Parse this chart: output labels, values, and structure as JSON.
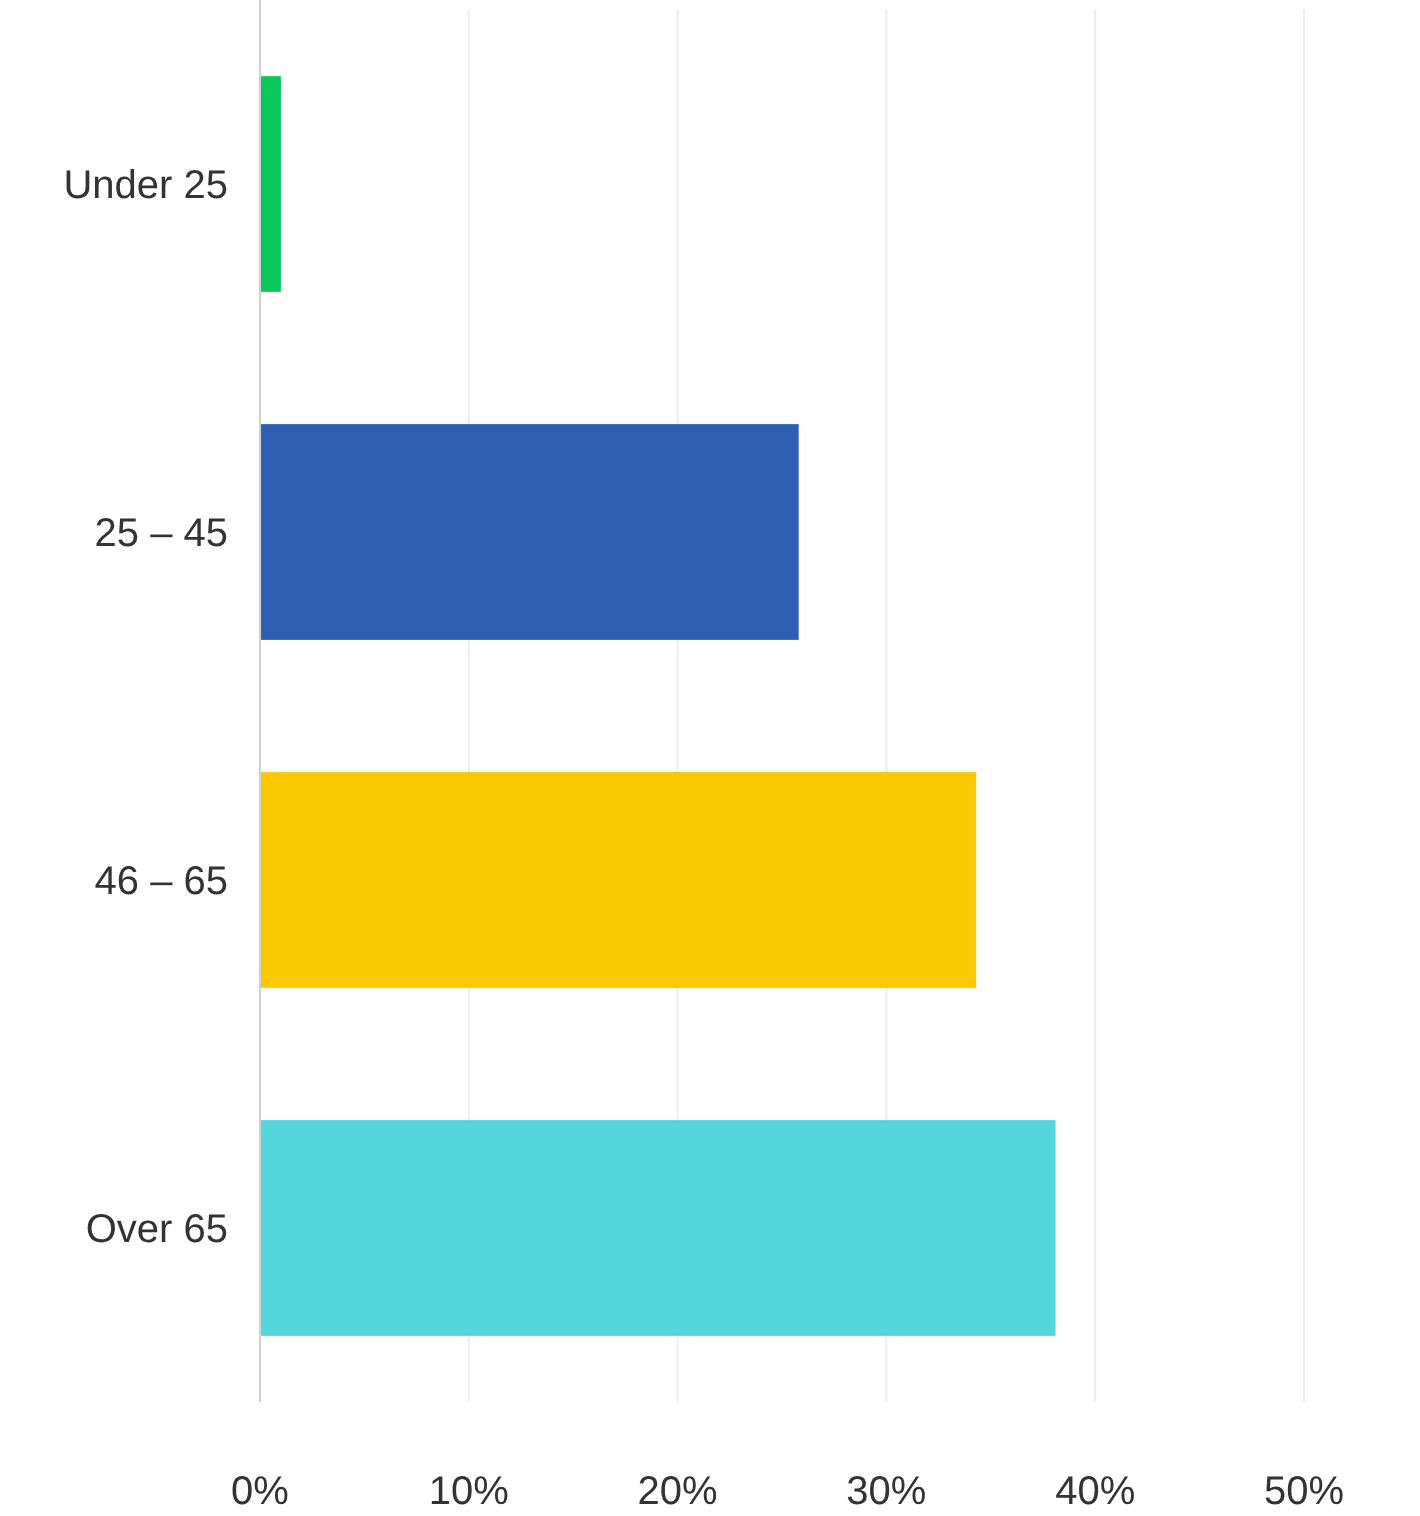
{
  "chart_data": {
    "type": "bar",
    "orientation": "horizontal",
    "categories": [
      "Under 25",
      "25 – 45",
      "46 – 65",
      "Over 65"
    ],
    "values": [
      1,
      25.8,
      34.3,
      38.1
    ],
    "colors": [
      "#0ac95a",
      "#2f5fb0",
      "#f9c800",
      "#54d6dc"
    ],
    "xlim": [
      0,
      50
    ],
    "xticks": [
      {
        "value": 0,
        "label": "0%"
      },
      {
        "value": 10,
        "label": "10%"
      },
      {
        "value": 20,
        "label": "20%"
      },
      {
        "value": 30,
        "label": "30%"
      },
      {
        "value": 40,
        "label": "40%"
      },
      {
        "value": 50,
        "label": "50%"
      }
    ],
    "grid": "x"
  }
}
